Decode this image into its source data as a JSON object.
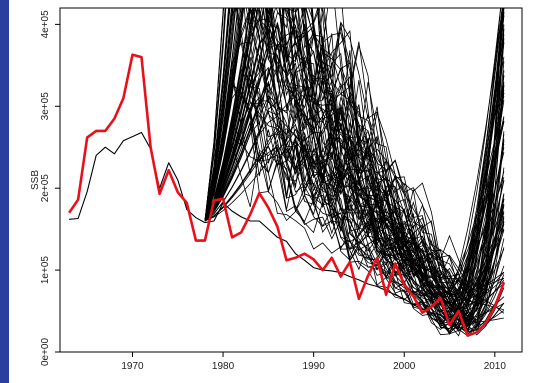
{
  "chart_data": {
    "type": "line",
    "title": "",
    "xlabel": "",
    "ylabel": "SSB",
    "xlim": [
      1962,
      2013
    ],
    "ylim": [
      0,
      420000
    ],
    "x_ticks": [
      1970,
      1980,
      1990,
      2000,
      2010
    ],
    "y_ticks": [
      0,
      100000,
      200000,
      300000,
      400000
    ],
    "x_tick_labels": [
      "1970",
      "1980",
      "1990",
      "2000",
      "2010"
    ],
    "y_tick_labels": [
      "0e+00",
      "1e+05",
      "2e+05",
      "3e+05",
      "4e+05"
    ],
    "grid": false,
    "legend": "none",
    "colors": {
      "highlight": "#e8111b",
      "ensemble": "#000000",
      "edge_strip": "#2a3f9e"
    },
    "series": [
      {
        "role": "highlighted",
        "x": [
          1963,
          1964,
          1965,
          1966,
          1967,
          1968,
          1969,
          1970,
          1971,
          1972,
          1973,
          1974,
          1975,
          1976,
          1977,
          1978,
          1979,
          1980,
          1981,
          1982,
          1983,
          1984,
          1985,
          1986,
          1987,
          1988,
          1989,
          1990,
          1991,
          1992,
          1993,
          1994,
          1995,
          1996,
          1997,
          1998,
          1999,
          2000,
          2001,
          2002,
          2003,
          2004,
          2005,
          2006,
          2007,
          2008,
          2009,
          2010,
          2011
        ],
        "y": [
          170000,
          186000,
          262000,
          270000,
          270000,
          285000,
          310000,
          363000,
          360000,
          250000,
          193000,
          222000,
          195000,
          182000,
          136000,
          136000,
          185000,
          187000,
          140000,
          146000,
          168000,
          194000,
          176000,
          153000,
          112000,
          115000,
          120000,
          113000,
          100000,
          115000,
          92000,
          110000,
          65000,
          93000,
          115000,
          70000,
          108000,
          82000,
          68000,
          48000,
          55000,
          66000,
          33000,
          50000,
          20000,
          24000,
          35000,
          55000,
          85000
        ]
      },
      {
        "role": "base",
        "x": [
          1963,
          1964,
          1965,
          1966,
          1967,
          1968,
          1969,
          1970,
          1971,
          1972,
          1973,
          1974,
          1975,
          1976,
          1977,
          1978,
          1979,
          1980,
          1981,
          1982,
          1983,
          1984,
          1985,
          1986,
          1987,
          1988,
          1989,
          1990,
          1991,
          1992,
          1993,
          1994,
          1995,
          1996,
          1997,
          1998,
          1999,
          2000,
          2001,
          2002,
          2003,
          2004,
          2005,
          2006,
          2007,
          2008,
          2009,
          2010,
          2011
        ],
        "y": [
          162000,
          163000,
          196000,
          240000,
          250000,
          242000,
          258000,
          263000,
          268000,
          248000,
          200000,
          231000,
          210000,
          174000,
          164000,
          158000,
          160000,
          182000,
          172000,
          165000,
          160000,
          160000,
          150000,
          140000,
          135000,
          120000,
          112000,
          103000,
          100000,
          99000,
          97000,
          92000,
          88000,
          83000,
          80000,
          75000,
          70000,
          65000,
          58000,
          52000,
          48000,
          45000,
          40000,
          30000,
          25000,
          27000,
          33000,
          45000,
          60000
        ]
      }
    ],
    "ensemble": {
      "count": 90,
      "start_year": 1978,
      "end_year": 2011,
      "description_values": "stochastic trajectories fanning from ~170000 in 1978 up beyond 420000 in the early 1980s, declining to ~25000-70000 around 2006-2008, then rising again toward 2011"
    }
  }
}
